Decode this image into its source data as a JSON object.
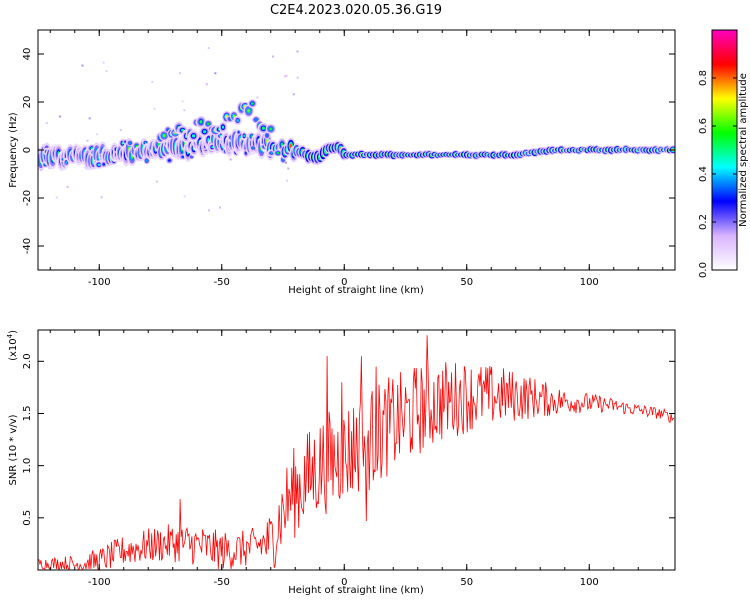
{
  "figure": {
    "title": "C2E4.2023.020.05.36.G19"
  },
  "chart_data": [
    {
      "type": "heatmap",
      "xlabel": "Height of straight line (km)",
      "ylabel": "Frequency (Hz)",
      "xlim": [
        -125,
        135
      ],
      "ylim": [
        -50,
        50
      ],
      "x_ticks": [
        -100,
        -50,
        0,
        50,
        100
      ],
      "y_ticks": [
        -40,
        -20,
        0,
        20,
        40
      ],
      "colorbar": {
        "label": "Normalized spectral amplitude",
        "range": [
          0,
          1
        ],
        "ticks": [
          "0.0",
          "0.2",
          "0.4",
          "0.6",
          "0.8"
        ],
        "colormap": [
          "#ffffff",
          "#d9b3ff",
          "#0000ff",
          "#00ffff",
          "#00ff00",
          "#ffff00",
          "#ff0000",
          "#ff00c0"
        ]
      },
      "ridge_center_hz": [
        [
          -125,
          -3
        ],
        [
          -110,
          -3
        ],
        [
          -95,
          -2
        ],
        [
          -80,
          0
        ],
        [
          -65,
          1
        ],
        [
          -50,
          3
        ],
        [
          -40,
          3
        ],
        [
          -30,
          2
        ],
        [
          -22,
          0
        ],
        [
          -17,
          -1
        ],
        [
          -14,
          -3
        ],
        [
          -10,
          -3
        ],
        [
          -6,
          1
        ],
        [
          -2,
          1
        ],
        [
          0,
          -2
        ],
        [
          5,
          -2
        ],
        [
          10,
          -2
        ],
        [
          30,
          -2
        ],
        [
          60,
          -2
        ],
        [
          70,
          -2
        ],
        [
          85,
          0
        ],
        [
          135,
          0
        ]
      ],
      "upper_branch_hz": [
        [
          -75,
          5
        ],
        [
          -65,
          8
        ],
        [
          -55,
          10
        ],
        [
          -50,
          12
        ],
        [
          -45,
          13
        ],
        [
          -40,
          16
        ],
        [
          -37,
          18
        ],
        [
          -35,
          8
        ],
        [
          -30,
          6
        ]
      ],
      "grid": false
    },
    {
      "type": "line",
      "xlabel": "Height of straight line (km)",
      "ylabel": "SNR (10 * v/v)",
      "y_multiplier": "(x10",
      "y_multiplier_exp": "4",
      "y_multiplier_close": ")",
      "xlim": [
        -125,
        135
      ],
      "ylim": [
        0,
        2.3
      ],
      "x_ticks": [
        -100,
        -50,
        0,
        50,
        100
      ],
      "y_ticks": [
        0.5,
        1.0,
        1.5,
        2.0
      ],
      "y_tick_labels": [
        "0.5",
        "1.0",
        "1.5",
        "2.0"
      ],
      "series": [
        {
          "color": "#ff0000",
          "points": [
            [
              -125,
              0.07
            ],
            [
              -110,
              0.06
            ],
            [
              -100,
              0.1
            ],
            [
              -90,
              0.2
            ],
            [
              -80,
              0.25
            ],
            [
              -70,
              0.28
            ],
            [
              -60,
              0.26
            ],
            [
              -50,
              0.2
            ],
            [
              -40,
              0.22
            ],
            [
              -30,
              0.3
            ],
            [
              -26,
              0.55
            ],
            [
              -22,
              0.75
            ],
            [
              -18,
              0.85
            ],
            [
              -14,
              0.95
            ],
            [
              -10,
              1.05
            ],
            [
              -5,
              1.1
            ],
            [
              0,
              1.15
            ],
            [
              5,
              1.25
            ],
            [
              10,
              1.3
            ],
            [
              15,
              1.38
            ],
            [
              20,
              1.45
            ],
            [
              25,
              1.5
            ],
            [
              30,
              1.58
            ],
            [
              35,
              1.62
            ],
            [
              40,
              1.66
            ],
            [
              45,
              1.68
            ],
            [
              50,
              1.7
            ],
            [
              55,
              1.7
            ],
            [
              60,
              1.7
            ],
            [
              65,
              1.7
            ],
            [
              70,
              1.69
            ],
            [
              75,
              1.68
            ],
            [
              80,
              1.66
            ],
            [
              85,
              1.64
            ],
            [
              90,
              1.63
            ],
            [
              95,
              1.62
            ],
            [
              100,
              1.61
            ],
            [
              105,
              1.6
            ],
            [
              110,
              1.58
            ],
            [
              115,
              1.56
            ],
            [
              120,
              1.54
            ],
            [
              125,
              1.52
            ],
            [
              130,
              1.5
            ],
            [
              135,
              1.45
            ]
          ],
          "noise_amplitude": [
            [
              -125,
              0.05
            ],
            [
              -90,
              0.15
            ],
            [
              -60,
              0.2
            ],
            [
              -35,
              0.18
            ],
            [
              -28,
              0.35
            ],
            [
              -20,
              0.45
            ],
            [
              -5,
              0.5
            ],
            [
              10,
              0.5
            ],
            [
              30,
              0.45
            ],
            [
              50,
              0.35
            ],
            [
              70,
              0.25
            ],
            [
              90,
              0.12
            ],
            [
              110,
              0.07
            ],
            [
              135,
              0.05
            ]
          ],
          "spikes": [
            [
              -67,
              0.68
            ],
            [
              -7,
              2.05
            ],
            [
              -1,
              1.8
            ],
            [
              7,
              2.05
            ],
            [
              9,
              0.47
            ],
            [
              34,
              2.25
            ],
            [
              13,
              1.95
            ]
          ]
        }
      ],
      "grid": false
    }
  ]
}
